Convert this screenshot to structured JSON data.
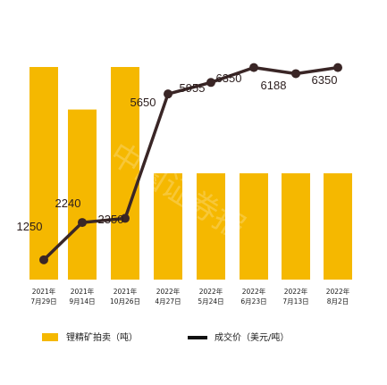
{
  "chart_data": {
    "type": "bar",
    "categories": [
      [
        "2021年",
        "7月29日"
      ],
      [
        "2021年",
        "9月14日"
      ],
      [
        "2021年",
        "10月26日"
      ],
      [
        "2022年",
        "4月27日"
      ],
      [
        "2022年",
        "5月24日"
      ],
      [
        "2022年",
        "6月23日"
      ],
      [
        "2022年",
        "7月13日"
      ],
      [
        "2022年",
        "8月2日"
      ]
    ],
    "series": [
      {
        "name": "锂精矿拍卖（吨）",
        "kind": "bar",
        "color": "#f5b800",
        "values": [
          10000,
          8000,
          10000,
          5000,
          5000,
          5000,
          5000,
          5000
        ]
      },
      {
        "name": "成交价（美元/吨）",
        "kind": "line",
        "color": "#3a2626",
        "values": [
          1250,
          2240,
          2350,
          5650,
          5955,
          6350,
          6188,
          6350
        ]
      }
    ],
    "watermark": "中国证券报",
    "grid": false,
    "legend": "bottom"
  }
}
